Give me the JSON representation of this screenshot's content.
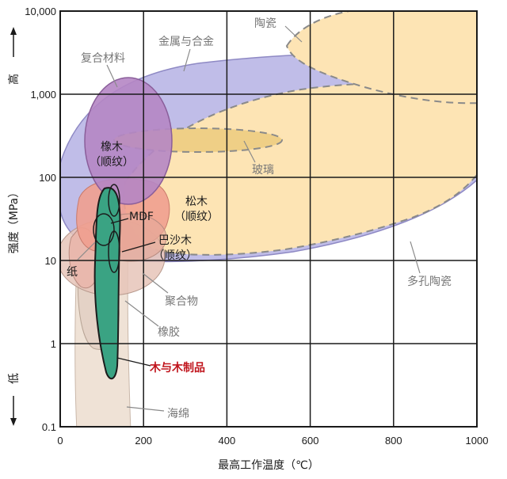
{
  "chart_data": {
    "type": "scatter",
    "title": "",
    "xlabel": "最高工作温度（℃）",
    "ylabel": "强度（MPa）",
    "y_high_label": "高",
    "y_low_label": "低",
    "xlim": [
      0,
      1000
    ],
    "ylim": [
      0.1,
      10000
    ],
    "y_scale": "log",
    "grid": true,
    "x_ticks": [
      "0",
      "200",
      "400",
      "600",
      "800",
      "1000"
    ],
    "x_tick_values": [
      0,
      200,
      400,
      600,
      800,
      1000
    ],
    "y_ticks": [
      "0.1",
      "1",
      "10",
      "100",
      "1,000",
      "10,000"
    ],
    "y_tick_values": [
      0.1,
      1,
      10,
      100,
      1000,
      10000
    ],
    "regions": [
      {
        "name": "陶瓷",
        "temp_range": [
          520,
          1000
        ],
        "strength_range": [
          700,
          10000
        ]
      },
      {
        "name": "金属与合金",
        "temp_range": [
          40,
          1000
        ],
        "strength_range": [
          8,
          3000
        ]
      },
      {
        "name": "复合材料",
        "temp_range": [
          55,
          210
        ],
        "strength_range": [
          50,
          2000
        ]
      },
      {
        "name": "玻璃",
        "temp_range": [
          130,
          540
        ],
        "strength_range": [
          200,
          500
        ]
      },
      {
        "name": "多孔陶瓷",
        "temp_range": [
          150,
          1000
        ],
        "strength_range": [
          8,
          1000
        ]
      },
      {
        "name": "橡木（顺纹）",
        "temp_range": [
          55,
          210
        ],
        "strength_range": [
          50,
          2000
        ]
      },
      {
        "name": "松木（顺纹）",
        "temp_range": [
          40,
          250
        ],
        "strength_range": [
          15,
          90
        ]
      },
      {
        "name": "巴沙木（顺纹）",
        "temp_range": [
          80,
          230
        ],
        "strength_range": [
          8,
          25
        ]
      },
      {
        "name": "聚合物",
        "temp_range": [
          10,
          250
        ],
        "strength_range": [
          4,
          20
        ]
      },
      {
        "name": "纸",
        "temp_range": [
          10,
          140
        ],
        "strength_range": [
          3,
          35
        ]
      },
      {
        "name": "MDF",
        "temp_range": [
          80,
          150
        ],
        "strength_range": [
          10,
          40
        ]
      },
      {
        "name": "木与木制品",
        "temp_range": [
          80,
          145
        ],
        "strength_range": [
          0.4,
          90
        ]
      },
      {
        "name": "橡胶",
        "temp_range": [
          40,
          150
        ],
        "strength_range": [
          1,
          8
        ]
      },
      {
        "name": "海绵",
        "temp_range": [
          40,
          165
        ],
        "strength_range": [
          0.1,
          8
        ]
      }
    ]
  },
  "labels": {
    "ceramics": "陶瓷",
    "metals": "金属与合金",
    "composites": "复合材料",
    "oak": "橡木",
    "oak_sub": "（顺纹）",
    "glass": "玻璃",
    "pine": "松木",
    "pine_sub": "（顺纹）",
    "mdf": "MDF",
    "balsa": "巴沙木",
    "balsa_sub": "（顺纹）",
    "paper": "纸",
    "polymers": "聚合物",
    "porous_ceramics": "多孔陶瓷",
    "rubber": "橡胶",
    "wood": "木与木制品",
    "foam": "海绵"
  },
  "colors": {
    "metals": "#b9b6e6",
    "ceramics": "#fde4b4",
    "porous_ceramics": "#fde4b4",
    "glass": "#efcf86",
    "composites": "#b586c4",
    "pine": "#ef9f8f",
    "polymers": "#e6c4b8",
    "foam": "#efe2d6",
    "wood": "#3aa383",
    "label_red": "#c0141c",
    "label_grey": "#777777"
  }
}
